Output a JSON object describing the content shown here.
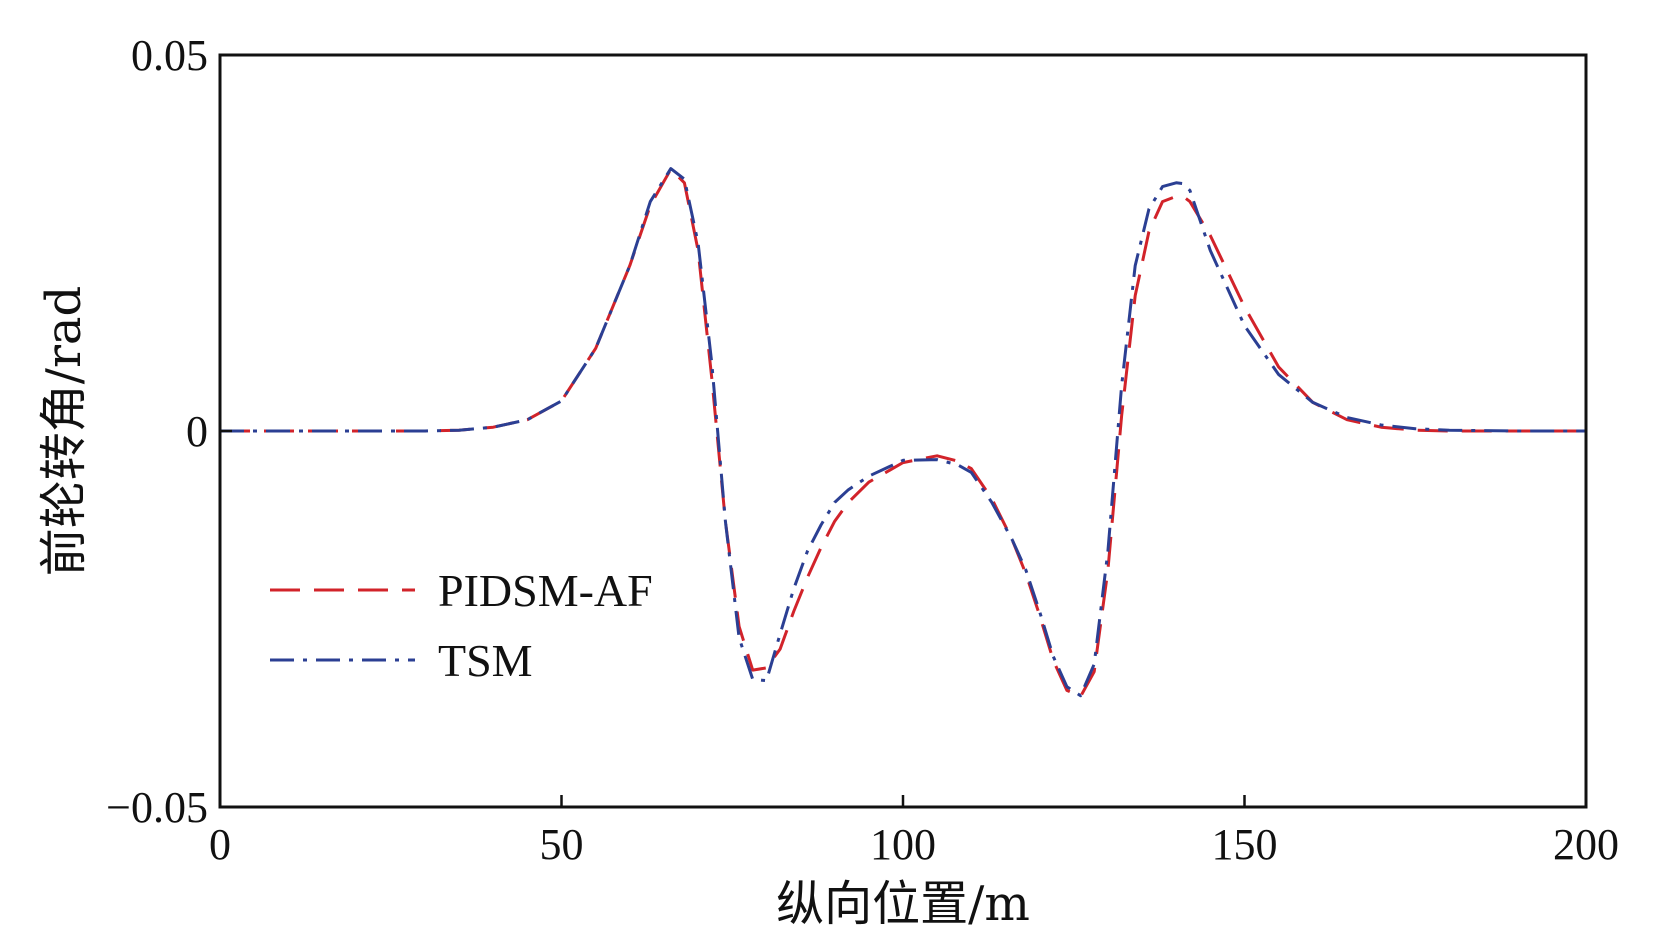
{
  "chart_data": {
    "type": "line",
    "title": "",
    "xlabel": "纵向位置/m",
    "ylabel": "前轮转角/rad",
    "xlim": [
      0,
      200
    ],
    "ylim": [
      -0.05,
      0.05
    ],
    "xticks": [
      0,
      50,
      100,
      150,
      200
    ],
    "xtick_labels": [
      "0",
      "50",
      "100",
      "150",
      "200"
    ],
    "yticks": [
      -0.05,
      0,
      0.05
    ],
    "ytick_labels": [
      "−0.05",
      "0",
      "0.05"
    ],
    "grid": false,
    "legend_position": "lower-left",
    "series": [
      {
        "name": "PIDSM-AF",
        "color": "#d2232a",
        "style": "dashed",
        "x": [
          0,
          10,
          20,
          30,
          35,
          40,
          45,
          50,
          55,
          60,
          63,
          66,
          68,
          70,
          72,
          74,
          76,
          78,
          80,
          82,
          84,
          86,
          88,
          90,
          92,
          95,
          100,
          105,
          108,
          110,
          113,
          116,
          118,
          120,
          122,
          124,
          126,
          128,
          130,
          132,
          134,
          136,
          138,
          140,
          141,
          142,
          145,
          150,
          155,
          160,
          165,
          170,
          175,
          180,
          190,
          200
        ],
        "y": [
          0,
          0,
          0,
          0,
          0.0001,
          0.0005,
          0.0015,
          0.004,
          0.011,
          0.022,
          0.03,
          0.0348,
          0.033,
          0.024,
          0.007,
          -0.012,
          -0.026,
          -0.0318,
          -0.0315,
          -0.029,
          -0.024,
          -0.0195,
          -0.0155,
          -0.012,
          -0.0095,
          -0.0068,
          -0.0042,
          -0.0033,
          -0.004,
          -0.005,
          -0.009,
          -0.0145,
          -0.019,
          -0.0245,
          -0.0305,
          -0.0345,
          -0.0353,
          -0.032,
          -0.0185,
          0.002,
          0.018,
          0.0265,
          0.0305,
          0.0312,
          0.0312,
          0.0305,
          0.026,
          0.0165,
          0.0085,
          0.0038,
          0.0015,
          0.0005,
          0.0001,
          0,
          0,
          0
        ]
      },
      {
        "name": "TSM",
        "color": "#2b3f93",
        "style": "dashdot",
        "x": [
          0,
          10,
          20,
          30,
          35,
          40,
          45,
          50,
          55,
          60,
          63,
          66,
          68,
          70,
          72,
          74,
          76,
          78,
          80,
          82,
          84,
          86,
          88,
          90,
          92,
          95,
          100,
          105,
          108,
          110,
          113,
          116,
          118,
          120,
          122,
          124,
          126,
          128,
          130,
          132,
          134,
          136,
          138,
          140,
          141,
          142,
          145,
          150,
          155,
          160,
          165,
          170,
          175,
          180,
          190,
          200
        ],
        "y": [
          0,
          0,
          0,
          0,
          0.0001,
          0.0005,
          0.0015,
          0.004,
          0.011,
          0.022,
          0.0305,
          0.0349,
          0.0335,
          0.025,
          0.009,
          -0.012,
          -0.0275,
          -0.033,
          -0.0332,
          -0.027,
          -0.021,
          -0.016,
          -0.0125,
          -0.0095,
          -0.0078,
          -0.006,
          -0.0039,
          -0.0038,
          -0.0045,
          -0.0055,
          -0.0095,
          -0.0145,
          -0.0185,
          -0.024,
          -0.03,
          -0.034,
          -0.0352,
          -0.031,
          -0.016,
          0.006,
          0.022,
          0.0295,
          0.0325,
          0.033,
          0.0329,
          0.032,
          0.024,
          0.014,
          0.0075,
          0.0038,
          0.0018,
          0.0008,
          0.0003,
          0.0001,
          0,
          0
        ]
      }
    ]
  }
}
